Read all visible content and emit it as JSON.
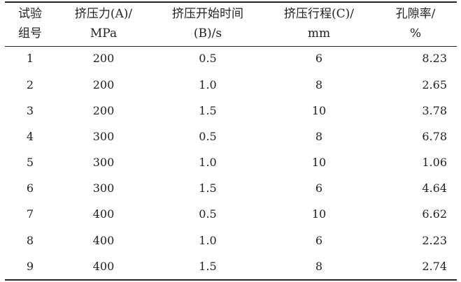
{
  "table": {
    "headers": [
      [
        "试验",
        "组号"
      ],
      [
        "挤压力(A)/",
        "MPa"
      ],
      [
        "挤压开始时间",
        "(B)/s"
      ],
      [
        "挤压行程(C)/",
        "mm"
      ],
      [
        "孔隙率/",
        "%"
      ]
    ],
    "rows": [
      [
        "1",
        "200",
        "0.5",
        "6",
        "8.23"
      ],
      [
        "2",
        "200",
        "1.0",
        "8",
        "2.65"
      ],
      [
        "3",
        "200",
        "1.5",
        "10",
        "3.78"
      ],
      [
        "4",
        "300",
        "0.5",
        "8",
        "6.78"
      ],
      [
        "5",
        "300",
        "1.0",
        "10",
        "1.06"
      ],
      [
        "6",
        "300",
        "1.5",
        "6",
        "4.64"
      ],
      [
        "7",
        "400",
        "0.5",
        "10",
        "6.62"
      ],
      [
        "8",
        "400",
        "1.0",
        "6",
        "2.23"
      ],
      [
        "9",
        "400",
        "1.5",
        "8",
        "2.74"
      ]
    ]
  }
}
